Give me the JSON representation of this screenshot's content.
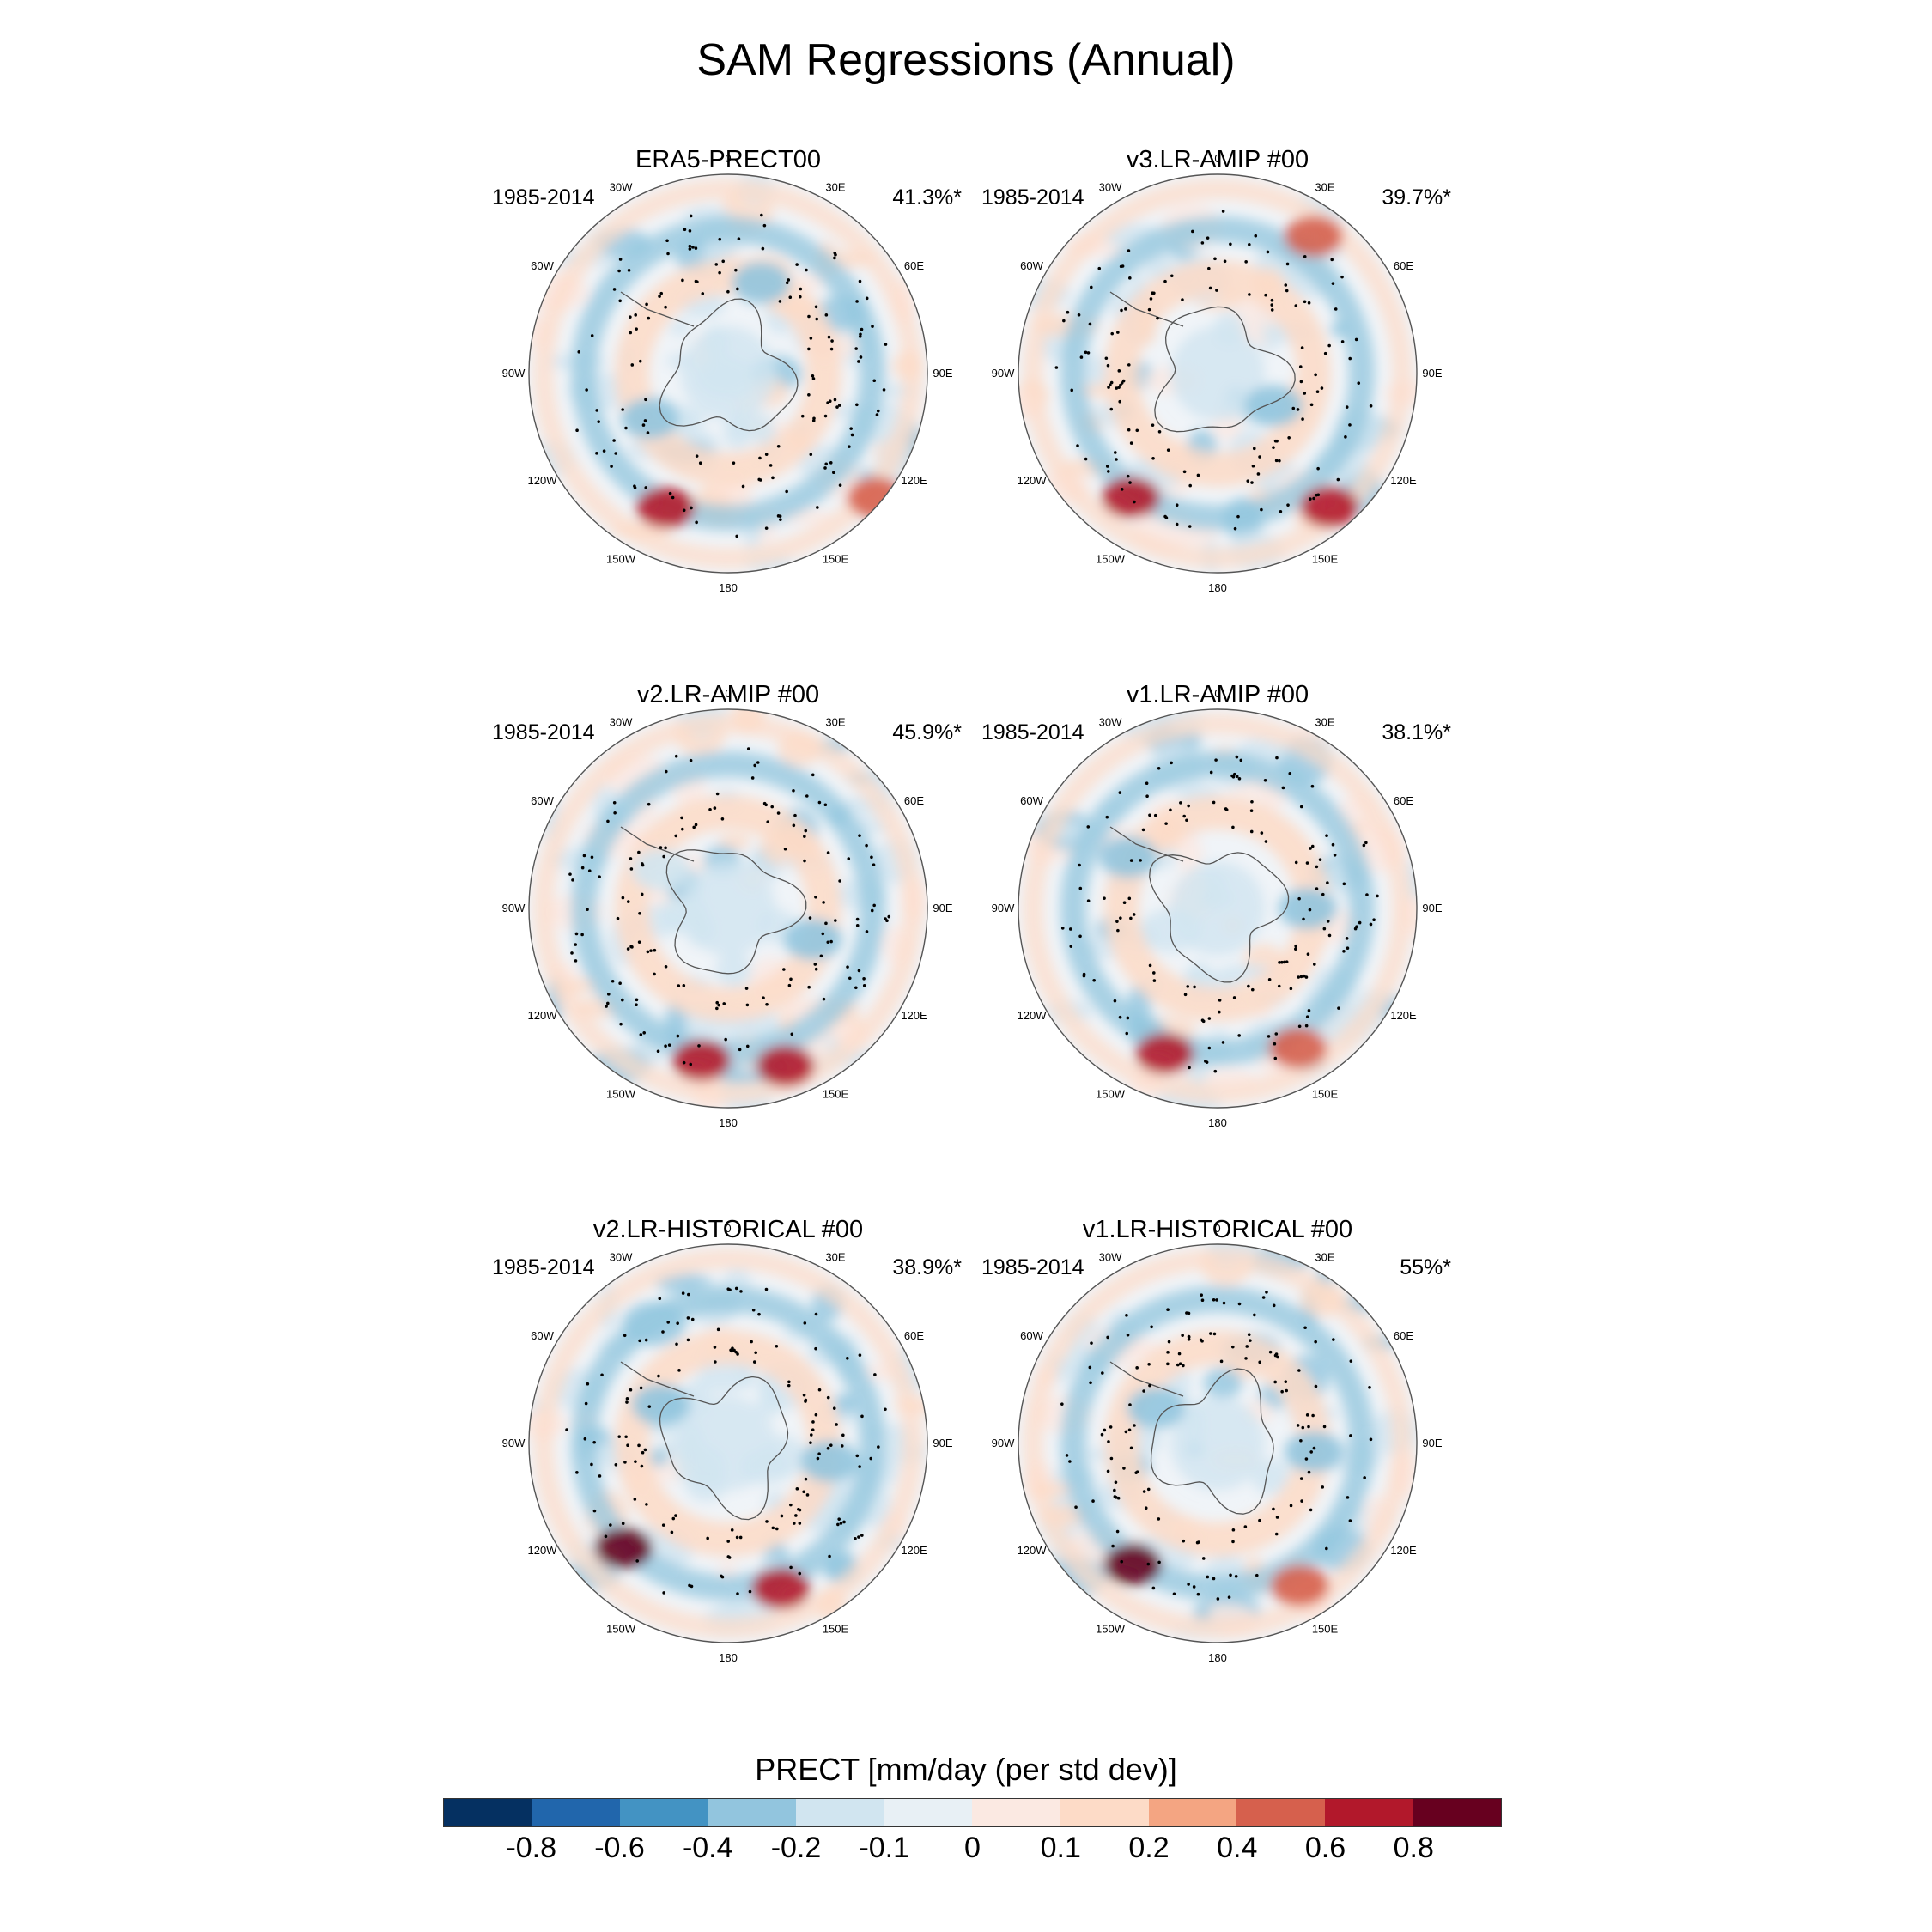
{
  "title": "SAM Regressions (Annual)",
  "longitude_labels": [
    "0",
    "30E",
    "60E",
    "90E",
    "120E",
    "150E",
    "180",
    "150W",
    "120W",
    "90W",
    "60W",
    "30W"
  ],
  "panels": [
    {
      "title": "ERA5-PRECT00",
      "period": "1985-2014",
      "stat": "41.3%*"
    },
    {
      "title": "v3.LR-AMIP  #00",
      "period": "1985-2014",
      "stat": "39.7%*"
    },
    {
      "title": "v2.LR-AMIP  #00",
      "period": "1985-2014",
      "stat": "45.9%*"
    },
    {
      "title": "v1.LR-AMIP  #00",
      "period": "1985-2014",
      "stat": "38.1%*"
    },
    {
      "title": "v2.LR-HISTORICAL  #00",
      "period": "1985-2014",
      "stat": "38.9%*"
    },
    {
      "title": "v1.LR-HISTORICAL  #00",
      "period": "1985-2014",
      "stat": "55%*"
    }
  ],
  "colorbar": {
    "title": "PRECT [mm/day (per std dev)]",
    "colors": [
      "#053061",
      "#2166ac",
      "#4393c3",
      "#92c5de",
      "#d1e5f0",
      "#e8f0f5",
      "#fbe9e2",
      "#fddbc7",
      "#f4a582",
      "#d6604d",
      "#b2182b",
      "#67001f"
    ],
    "tick_labels": [
      "-0.8",
      "-0.6",
      "-0.4",
      "-0.2",
      "-0.1",
      "0",
      "0.1",
      "0.2",
      "0.4",
      "0.6",
      "0.8"
    ]
  }
}
